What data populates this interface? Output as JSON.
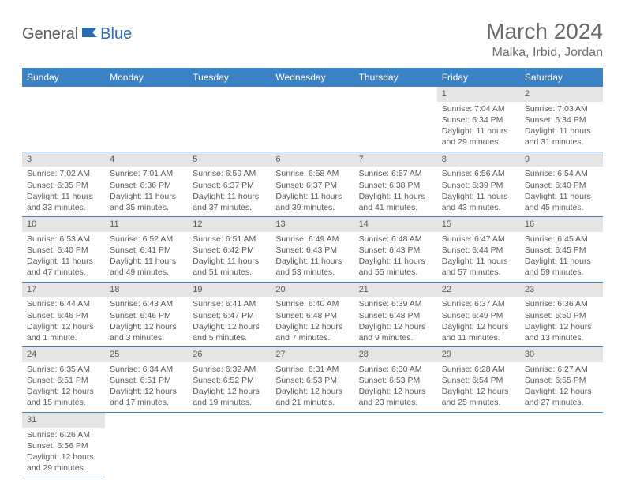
{
  "logo": {
    "general": "General",
    "blue": "Blue"
  },
  "title": "March 2024",
  "location": "Malka, Irbid, Jordan",
  "colors": {
    "header_bg": "#3b82c4",
    "header_text": "#ffffff",
    "daynum_bg": "#e5e5e5",
    "border": "#3b82c4",
    "text": "#5a5a5a"
  },
  "day_headers": [
    "Sunday",
    "Monday",
    "Tuesday",
    "Wednesday",
    "Thursday",
    "Friday",
    "Saturday"
  ],
  "weeks": [
    [
      {
        "n": "",
        "sr": "",
        "ss": "",
        "dl": ""
      },
      {
        "n": "",
        "sr": "",
        "ss": "",
        "dl": ""
      },
      {
        "n": "",
        "sr": "",
        "ss": "",
        "dl": ""
      },
      {
        "n": "",
        "sr": "",
        "ss": "",
        "dl": ""
      },
      {
        "n": "",
        "sr": "",
        "ss": "",
        "dl": ""
      },
      {
        "n": "1",
        "sr": "Sunrise: 7:04 AM",
        "ss": "Sunset: 6:34 PM",
        "dl": "Daylight: 11 hours and 29 minutes."
      },
      {
        "n": "2",
        "sr": "Sunrise: 7:03 AM",
        "ss": "Sunset: 6:34 PM",
        "dl": "Daylight: 11 hours and 31 minutes."
      }
    ],
    [
      {
        "n": "3",
        "sr": "Sunrise: 7:02 AM",
        "ss": "Sunset: 6:35 PM",
        "dl": "Daylight: 11 hours and 33 minutes."
      },
      {
        "n": "4",
        "sr": "Sunrise: 7:01 AM",
        "ss": "Sunset: 6:36 PM",
        "dl": "Daylight: 11 hours and 35 minutes."
      },
      {
        "n": "5",
        "sr": "Sunrise: 6:59 AM",
        "ss": "Sunset: 6:37 PM",
        "dl": "Daylight: 11 hours and 37 minutes."
      },
      {
        "n": "6",
        "sr": "Sunrise: 6:58 AM",
        "ss": "Sunset: 6:37 PM",
        "dl": "Daylight: 11 hours and 39 minutes."
      },
      {
        "n": "7",
        "sr": "Sunrise: 6:57 AM",
        "ss": "Sunset: 6:38 PM",
        "dl": "Daylight: 11 hours and 41 minutes."
      },
      {
        "n": "8",
        "sr": "Sunrise: 6:56 AM",
        "ss": "Sunset: 6:39 PM",
        "dl": "Daylight: 11 hours and 43 minutes."
      },
      {
        "n": "9",
        "sr": "Sunrise: 6:54 AM",
        "ss": "Sunset: 6:40 PM",
        "dl": "Daylight: 11 hours and 45 minutes."
      }
    ],
    [
      {
        "n": "10",
        "sr": "Sunrise: 6:53 AM",
        "ss": "Sunset: 6:40 PM",
        "dl": "Daylight: 11 hours and 47 minutes."
      },
      {
        "n": "11",
        "sr": "Sunrise: 6:52 AM",
        "ss": "Sunset: 6:41 PM",
        "dl": "Daylight: 11 hours and 49 minutes."
      },
      {
        "n": "12",
        "sr": "Sunrise: 6:51 AM",
        "ss": "Sunset: 6:42 PM",
        "dl": "Daylight: 11 hours and 51 minutes."
      },
      {
        "n": "13",
        "sr": "Sunrise: 6:49 AM",
        "ss": "Sunset: 6:43 PM",
        "dl": "Daylight: 11 hours and 53 minutes."
      },
      {
        "n": "14",
        "sr": "Sunrise: 6:48 AM",
        "ss": "Sunset: 6:43 PM",
        "dl": "Daylight: 11 hours and 55 minutes."
      },
      {
        "n": "15",
        "sr": "Sunrise: 6:47 AM",
        "ss": "Sunset: 6:44 PM",
        "dl": "Daylight: 11 hours and 57 minutes."
      },
      {
        "n": "16",
        "sr": "Sunrise: 6:45 AM",
        "ss": "Sunset: 6:45 PM",
        "dl": "Daylight: 11 hours and 59 minutes."
      }
    ],
    [
      {
        "n": "17",
        "sr": "Sunrise: 6:44 AM",
        "ss": "Sunset: 6:46 PM",
        "dl": "Daylight: 12 hours and 1 minute."
      },
      {
        "n": "18",
        "sr": "Sunrise: 6:43 AM",
        "ss": "Sunset: 6:46 PM",
        "dl": "Daylight: 12 hours and 3 minutes."
      },
      {
        "n": "19",
        "sr": "Sunrise: 6:41 AM",
        "ss": "Sunset: 6:47 PM",
        "dl": "Daylight: 12 hours and 5 minutes."
      },
      {
        "n": "20",
        "sr": "Sunrise: 6:40 AM",
        "ss": "Sunset: 6:48 PM",
        "dl": "Daylight: 12 hours and 7 minutes."
      },
      {
        "n": "21",
        "sr": "Sunrise: 6:39 AM",
        "ss": "Sunset: 6:48 PM",
        "dl": "Daylight: 12 hours and 9 minutes."
      },
      {
        "n": "22",
        "sr": "Sunrise: 6:37 AM",
        "ss": "Sunset: 6:49 PM",
        "dl": "Daylight: 12 hours and 11 minutes."
      },
      {
        "n": "23",
        "sr": "Sunrise: 6:36 AM",
        "ss": "Sunset: 6:50 PM",
        "dl": "Daylight: 12 hours and 13 minutes."
      }
    ],
    [
      {
        "n": "24",
        "sr": "Sunrise: 6:35 AM",
        "ss": "Sunset: 6:51 PM",
        "dl": "Daylight: 12 hours and 15 minutes."
      },
      {
        "n": "25",
        "sr": "Sunrise: 6:34 AM",
        "ss": "Sunset: 6:51 PM",
        "dl": "Daylight: 12 hours and 17 minutes."
      },
      {
        "n": "26",
        "sr": "Sunrise: 6:32 AM",
        "ss": "Sunset: 6:52 PM",
        "dl": "Daylight: 12 hours and 19 minutes."
      },
      {
        "n": "27",
        "sr": "Sunrise: 6:31 AM",
        "ss": "Sunset: 6:53 PM",
        "dl": "Daylight: 12 hours and 21 minutes."
      },
      {
        "n": "28",
        "sr": "Sunrise: 6:30 AM",
        "ss": "Sunset: 6:53 PM",
        "dl": "Daylight: 12 hours and 23 minutes."
      },
      {
        "n": "29",
        "sr": "Sunrise: 6:28 AM",
        "ss": "Sunset: 6:54 PM",
        "dl": "Daylight: 12 hours and 25 minutes."
      },
      {
        "n": "30",
        "sr": "Sunrise: 6:27 AM",
        "ss": "Sunset: 6:55 PM",
        "dl": "Daylight: 12 hours and 27 minutes."
      }
    ],
    [
      {
        "n": "31",
        "sr": "Sunrise: 6:26 AM",
        "ss": "Sunset: 6:56 PM",
        "dl": "Daylight: 12 hours and 29 minutes."
      },
      {
        "n": "",
        "sr": "",
        "ss": "",
        "dl": ""
      },
      {
        "n": "",
        "sr": "",
        "ss": "",
        "dl": ""
      },
      {
        "n": "",
        "sr": "",
        "ss": "",
        "dl": ""
      },
      {
        "n": "",
        "sr": "",
        "ss": "",
        "dl": ""
      },
      {
        "n": "",
        "sr": "",
        "ss": "",
        "dl": ""
      },
      {
        "n": "",
        "sr": "",
        "ss": "",
        "dl": ""
      }
    ]
  ]
}
